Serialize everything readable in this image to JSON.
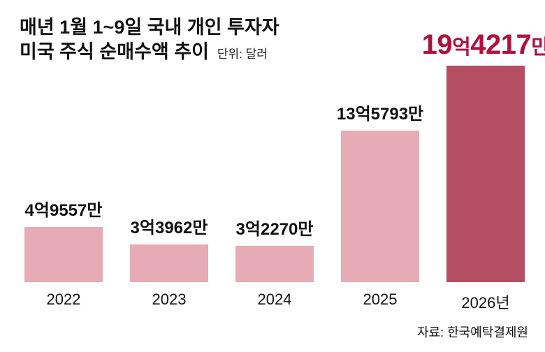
{
  "header": {
    "title_line1": "매년 1월 1~9일 국내 개인 투자자",
    "title_line2": "미국 주식 순매수액 추이",
    "unit_label": "단위: 달러"
  },
  "footer": {
    "source": "자료: 한국예탁결제원"
  },
  "chart_data": {
    "type": "bar",
    "title": "매년 1월 1~9일 국내 개인 투자자 미국 주식 순매수액 추이",
    "subtitle": "단위: 달러",
    "source": "자료: 한국예탁결제원",
    "categories": [
      "2022",
      "2023",
      "2024",
      "2025",
      "2026년"
    ],
    "values": [
      49557,
      33962,
      32270,
      135793,
      194217
    ],
    "unit": "만 달러",
    "value_labels": [
      "4억9557만",
      "3억3962만",
      "3억2270만",
      "13억5793만",
      "19억4217만"
    ],
    "highlight_index": 4,
    "ylim": [
      0,
      200000
    ],
    "grid": false,
    "legend": "none",
    "colors": {
      "bar": "#e6abb5",
      "highlight_bar": "#b34e63",
      "highlight_text": "#b1103e",
      "label": "#111111"
    }
  }
}
